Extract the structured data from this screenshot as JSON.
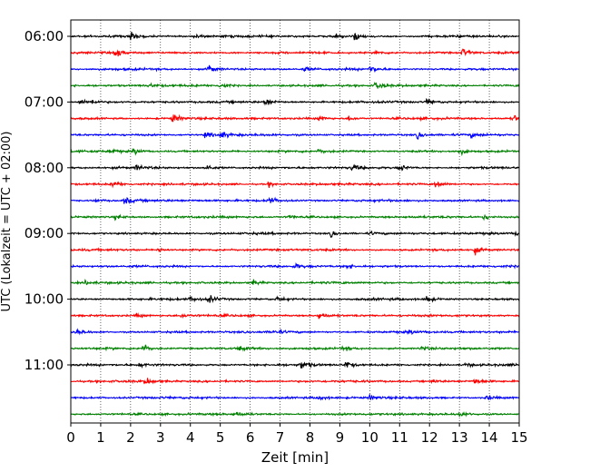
{
  "chart_data": {
    "type": "line",
    "title": "",
    "xlabel": "Zeit  [min]",
    "ylabel": "UTC (Lokalzeit = UTC + 02:00)",
    "xlim": [
      0,
      15
    ],
    "x_ticks": [
      0,
      1,
      2,
      3,
      4,
      5,
      6,
      7,
      8,
      9,
      10,
      11,
      12,
      13,
      14,
      15
    ],
    "x_grid": true,
    "trace_interval_min": 15,
    "y_ticks": [
      "06:00",
      "07:00",
      "08:00",
      "09:00",
      "10:00",
      "11:00"
    ],
    "trace_colors": [
      "#000000",
      "#ff0000",
      "#0000ff",
      "#008000"
    ],
    "traces": [
      {
        "start": "06:00",
        "events": [
          [
            2.0,
            1.0
          ],
          [
            4.1,
            0.5
          ],
          [
            8.9,
            0.6
          ],
          [
            9.5,
            0.8
          ]
        ]
      },
      {
        "start": "06:15",
        "events": [
          [
            1.5,
            1.0
          ],
          [
            10.2,
            0.4
          ],
          [
            13.1,
            1.0
          ]
        ]
      },
      {
        "start": "06:30",
        "events": [
          [
            4.6,
            1.0
          ],
          [
            7.8,
            0.5
          ],
          [
            10.0,
            0.8
          ]
        ]
      },
      {
        "start": "06:45",
        "events": [
          [
            2.6,
            0.4
          ],
          [
            5.0,
            0.8
          ],
          [
            10.2,
            1.0
          ]
        ]
      },
      {
        "start": "07:00",
        "events": [
          [
            0.3,
            0.7
          ],
          [
            0.7,
            0.6
          ],
          [
            6.5,
            1.0
          ],
          [
            11.9,
            0.7
          ]
        ]
      },
      {
        "start": "07:15",
        "events": [
          [
            3.4,
            1.0
          ],
          [
            8.3,
            0.6
          ],
          [
            9.3,
            0.5
          ],
          [
            14.8,
            0.8
          ]
        ]
      },
      {
        "start": "07:30",
        "events": [
          [
            4.5,
            0.7
          ],
          [
            5.0,
            0.9
          ],
          [
            11.6,
            0.8
          ],
          [
            13.4,
            0.4
          ]
        ]
      },
      {
        "start": "07:45",
        "events": [
          [
            1.3,
            0.5
          ],
          [
            2.1,
            0.7
          ],
          [
            8.3,
            0.4
          ],
          [
            13.0,
            0.6
          ]
        ]
      },
      {
        "start": "08:00",
        "events": [
          [
            2.2,
            0.5
          ],
          [
            4.5,
            0.9
          ],
          [
            9.4,
            0.7
          ],
          [
            11.0,
            0.8
          ]
        ]
      },
      {
        "start": "08:15",
        "events": [
          [
            1.4,
            0.7
          ],
          [
            6.6,
            0.5
          ],
          [
            12.2,
            0.8
          ]
        ]
      },
      {
        "start": "08:30",
        "events": [
          [
            1.8,
            0.8
          ],
          [
            6.6,
            1.0
          ],
          [
            0.8,
            0.4
          ]
        ]
      },
      {
        "start": "08:45",
        "events": [
          [
            1.5,
            0.5
          ],
          [
            7.3,
            0.5
          ],
          [
            13.8,
            0.6
          ]
        ]
      },
      {
        "start": "09:00",
        "events": [
          [
            8.7,
            0.7
          ],
          [
            10.0,
            0.3
          ],
          [
            14.9,
            0.5
          ]
        ]
      },
      {
        "start": "09:15",
        "events": [
          [
            2.9,
            0.5
          ],
          [
            13.5,
            0.8
          ]
        ]
      },
      {
        "start": "09:30",
        "events": [
          [
            7.5,
            0.5
          ],
          [
            9.2,
            0.6
          ]
        ]
      },
      {
        "start": "09:45",
        "events": [
          [
            0.5,
            0.4
          ],
          [
            6.1,
            0.6
          ]
        ]
      },
      {
        "start": "10:00",
        "events": [
          [
            4.0,
            0.6
          ],
          [
            4.6,
            0.9
          ],
          [
            6.9,
            0.5
          ],
          [
            11.9,
            0.7
          ]
        ]
      },
      {
        "start": "10:15",
        "events": [
          [
            2.2,
            0.4
          ],
          [
            3.7,
            0.4
          ],
          [
            8.3,
            0.8
          ]
        ]
      },
      {
        "start": "10:30",
        "events": [
          [
            0.2,
            0.6
          ],
          [
            6.8,
            0.5
          ],
          [
            11.3,
            0.4
          ]
        ]
      },
      {
        "start": "10:45",
        "events": [
          [
            2.4,
            1.0
          ],
          [
            5.6,
            0.5
          ],
          [
            9.1,
            0.4
          ],
          [
            11.7,
            0.5
          ]
        ]
      },
      {
        "start": "11:00",
        "events": [
          [
            2.3,
            0.5
          ],
          [
            7.7,
            1.0
          ],
          [
            9.2,
            0.9
          ],
          [
            13.2,
            0.4
          ]
        ]
      },
      {
        "start": "11:15",
        "events": [
          [
            2.5,
            0.8
          ],
          [
            12.1,
            0.4
          ],
          [
            13.5,
            0.7
          ]
        ]
      },
      {
        "start": "11:30",
        "events": [
          [
            8.3,
            0.5
          ],
          [
            10.0,
            0.5
          ],
          [
            13.9,
            0.6
          ]
        ]
      },
      {
        "start": "11:45",
        "events": [
          [
            5.5,
            0.5
          ],
          [
            13.0,
            0.5
          ]
        ]
      }
    ]
  }
}
